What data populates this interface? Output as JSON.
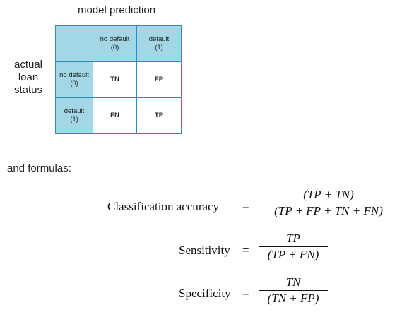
{
  "matrix": {
    "column_title": "model prediction",
    "row_title": [
      "actual",
      "loan",
      "status"
    ],
    "columns": [
      {
        "line1": "no default",
        "line2": "(0)"
      },
      {
        "line1": "default",
        "line2": "(1)"
      }
    ],
    "rows": [
      {
        "line1": "no default",
        "line2": "(0)",
        "cells": [
          "TN",
          "FP"
        ]
      },
      {
        "line1": "default",
        "line2": "(1)",
        "cells": [
          "FN",
          "TP"
        ]
      }
    ],
    "colors": {
      "header_fill": "#a3d7e6",
      "border": "#2f8cb4"
    }
  },
  "intro_text": "and formulas:",
  "formulas": [
    {
      "name": "Classification accuracy",
      "equals": "=",
      "numerator": "(TP + TN)",
      "denominator": "(TP + FP + TN + FN)"
    },
    {
      "name": "Sensitivity",
      "equals": "=",
      "numerator": "TP",
      "denominator": "(TP + FN)"
    },
    {
      "name": "Specificity",
      "equals": "=",
      "numerator": "TN",
      "denominator": "(TN + FP)"
    }
  ]
}
